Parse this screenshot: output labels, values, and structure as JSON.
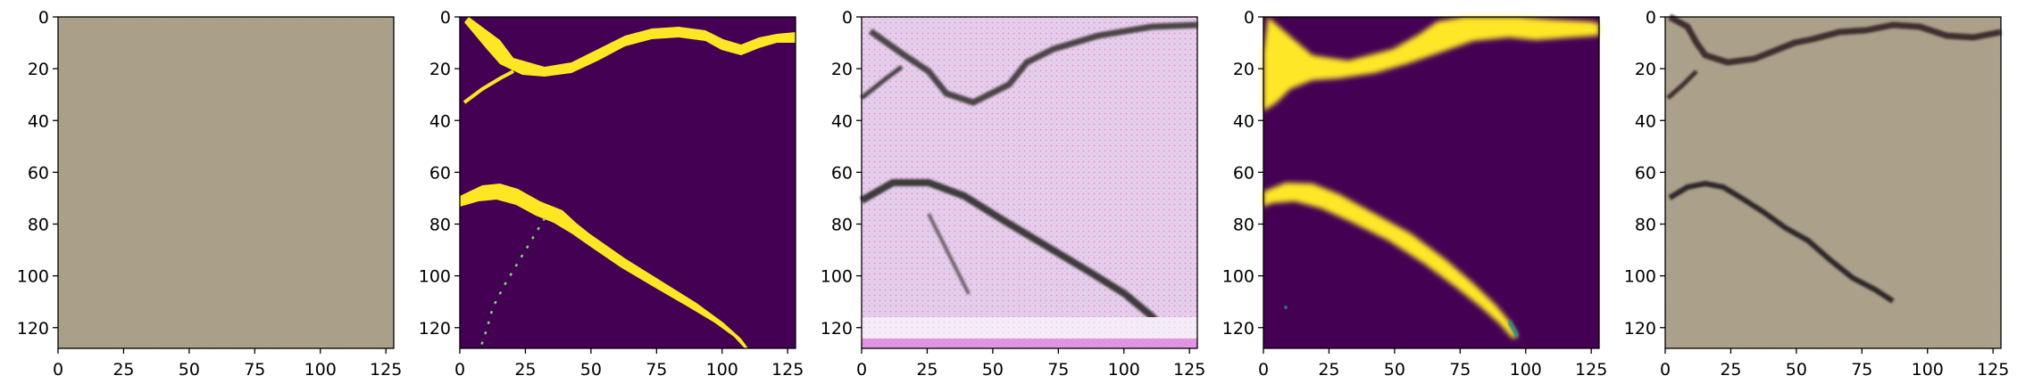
{
  "figure": {
    "panels": [
      {
        "name": "original-texture",
        "kind": "image"
      },
      {
        "name": "binary-mask",
        "kind": "heatmap"
      },
      {
        "name": "generated-texture",
        "kind": "image"
      },
      {
        "name": "soft-mask",
        "kind": "heatmap"
      },
      {
        "name": "composited-crack",
        "kind": "image"
      }
    ],
    "x_ticks": [
      "0",
      "25",
      "50",
      "75",
      "100",
      "125"
    ],
    "y_ticks": [
      "0",
      "20",
      "40",
      "60",
      "80",
      "100",
      "120"
    ],
    "x_tick_values": [
      0,
      25,
      50,
      75,
      100,
      125
    ],
    "y_tick_values": [
      0,
      20,
      40,
      60,
      80,
      100,
      120
    ],
    "pixel_extent": [
      0,
      128
    ],
    "colors": {
      "viridis_low": "#440154",
      "viridis_high": "#fde725",
      "viridis_mid": "#21918c",
      "concrete": "#a89c84",
      "crack_dark": "#3a2a2a",
      "generated_bg": "#e8c8e8"
    }
  }
}
